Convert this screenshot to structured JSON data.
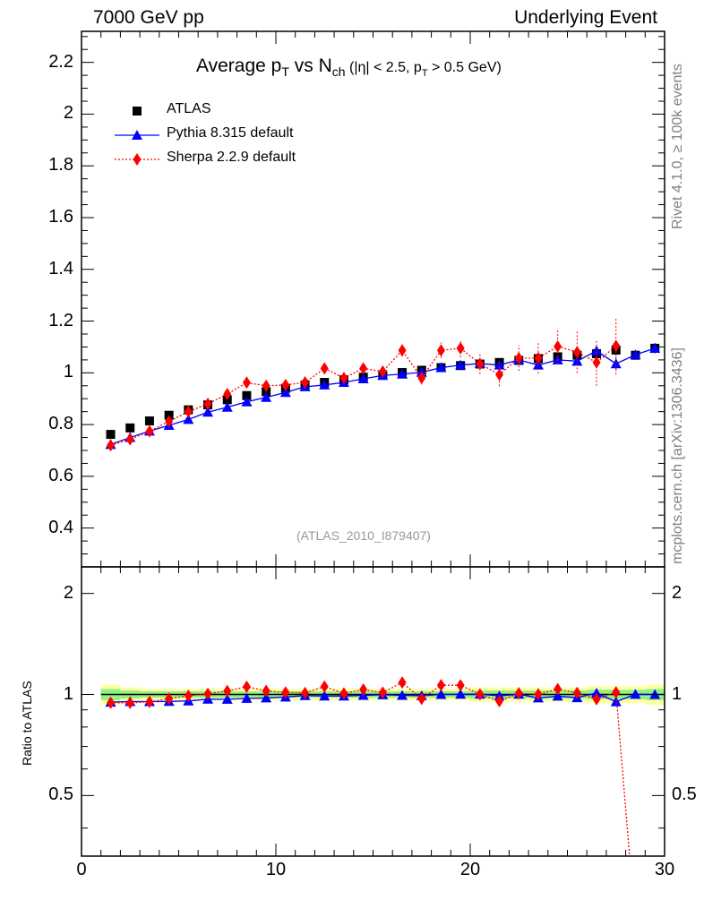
{
  "header": {
    "left": "7000 GeV pp",
    "right": "Underlying Event"
  },
  "side_labels": {
    "rivet": "Rivet 4.1.0, ≥ 100k events",
    "mcplots": "mcplots.cern.ch [arXiv:1306.3436]"
  },
  "chart_data": {
    "type": "scatter",
    "title": "Average p_T vs N_ch (|η| < 2.5, p_T > 0.5 GeV)",
    "title_parts": {
      "a": "Average p",
      "a_sub": "T",
      "b": " vs N",
      "b_sub": "ch",
      "c": " (|η| < 2.5, p",
      "c_sub": "T",
      "d": " > 0.5 GeV)"
    },
    "watermark": "(ATLAS_2010_I879407)",
    "xlim": [
      0,
      30
    ],
    "ylim": [
      0.25,
      2.32
    ],
    "ratio_ylim": [
      0.33,
      2.4
    ],
    "ratio_ylabel": "Ratio to ATLAS",
    "x_ticks": [
      0,
      10,
      20,
      30
    ],
    "y_ticks": [
      0.4,
      0.6,
      0.8,
      1,
      1.2,
      1.4,
      1.6,
      1.8,
      2,
      2.2
    ],
    "ratio_ticks": [
      0.5,
      1,
      2
    ],
    "x": [
      1.5,
      2.5,
      3.5,
      4.5,
      5.5,
      6.5,
      7.5,
      8.5,
      9.5,
      10.5,
      11.5,
      12.5,
      13.5,
      14.5,
      15.5,
      16.5,
      17.5,
      18.5,
      19.5,
      20.5,
      21.5,
      22.5,
      23.5,
      24.5,
      25.5,
      26.5,
      27.5,
      28.5,
      29.5
    ],
    "series": [
      {
        "name": "ATLAS",
        "color": "#000000",
        "marker": "square",
        "values": [
          0.762,
          0.787,
          0.814,
          0.836,
          0.857,
          0.876,
          0.896,
          0.912,
          0.927,
          0.94,
          0.953,
          0.963,
          0.973,
          0.983,
          0.992,
          1.001,
          1.01,
          1.02,
          1.028,
          1.034,
          1.04,
          1.048,
          1.055,
          1.062,
          1.068,
          1.074,
          1.088,
          1.068,
          1.095
        ],
        "band_rel": [
          0.07,
          0.05,
          0.04,
          0.04,
          0.04,
          0.04,
          0.04,
          0.04,
          0.04,
          0.04,
          0.04,
          0.04,
          0.04,
          0.04,
          0.04,
          0.04,
          0.04,
          0.04,
          0.04,
          0.05,
          0.05,
          0.05,
          0.05,
          0.05,
          0.05,
          0.06,
          0.06,
          0.06,
          0.07
        ]
      },
      {
        "name": "Pythia 8.315 default",
        "color": "#0000ff",
        "marker": "triangle",
        "line": "solid",
        "values": [
          0.723,
          0.75,
          0.775,
          0.797,
          0.82,
          0.848,
          0.867,
          0.888,
          0.905,
          0.924,
          0.946,
          0.953,
          0.963,
          0.977,
          0.99,
          0.995,
          1.002,
          1.02,
          1.03,
          1.036,
          1.03,
          1.05,
          1.03,
          1.05,
          1.045,
          1.085,
          1.035,
          1.07,
          1.095
        ],
        "errors": [
          0.005,
          0.005,
          0.005,
          0.005,
          0.005,
          0.005,
          0.005,
          0.005,
          0.005,
          0.005,
          0.005,
          0.005,
          0.005,
          0.005,
          0.006,
          0.006,
          0.006,
          0.006,
          0.008,
          0.008,
          0.01,
          0.012,
          0.014,
          0.016,
          0.018,
          0.022,
          0.025,
          0.015,
          0.02
        ]
      },
      {
        "name": "Sherpa 2.2.9 default",
        "color": "#ff0000",
        "marker": "diamond",
        "line": "dotted",
        "values": [
          0.72,
          0.743,
          0.774,
          0.812,
          0.85,
          0.88,
          0.918,
          0.962,
          0.95,
          0.953,
          0.963,
          1.017,
          0.98,
          1.017,
          1.005,
          1.087,
          0.98,
          1.087,
          1.095,
          1.035,
          0.993,
          1.057,
          1.057,
          1.102,
          1.08,
          1.04,
          1.104
        ],
        "errors": [
          0.005,
          0.005,
          0.006,
          0.006,
          0.007,
          0.008,
          0.008,
          0.01,
          0.01,
          0.01,
          0.012,
          0.014,
          0.014,
          0.016,
          0.018,
          0.025,
          0.025,
          0.03,
          0.035,
          0.04,
          0.045,
          0.05,
          0.06,
          0.07,
          0.08,
          0.09,
          0.11
        ]
      }
    ],
    "legend": "top-left"
  }
}
